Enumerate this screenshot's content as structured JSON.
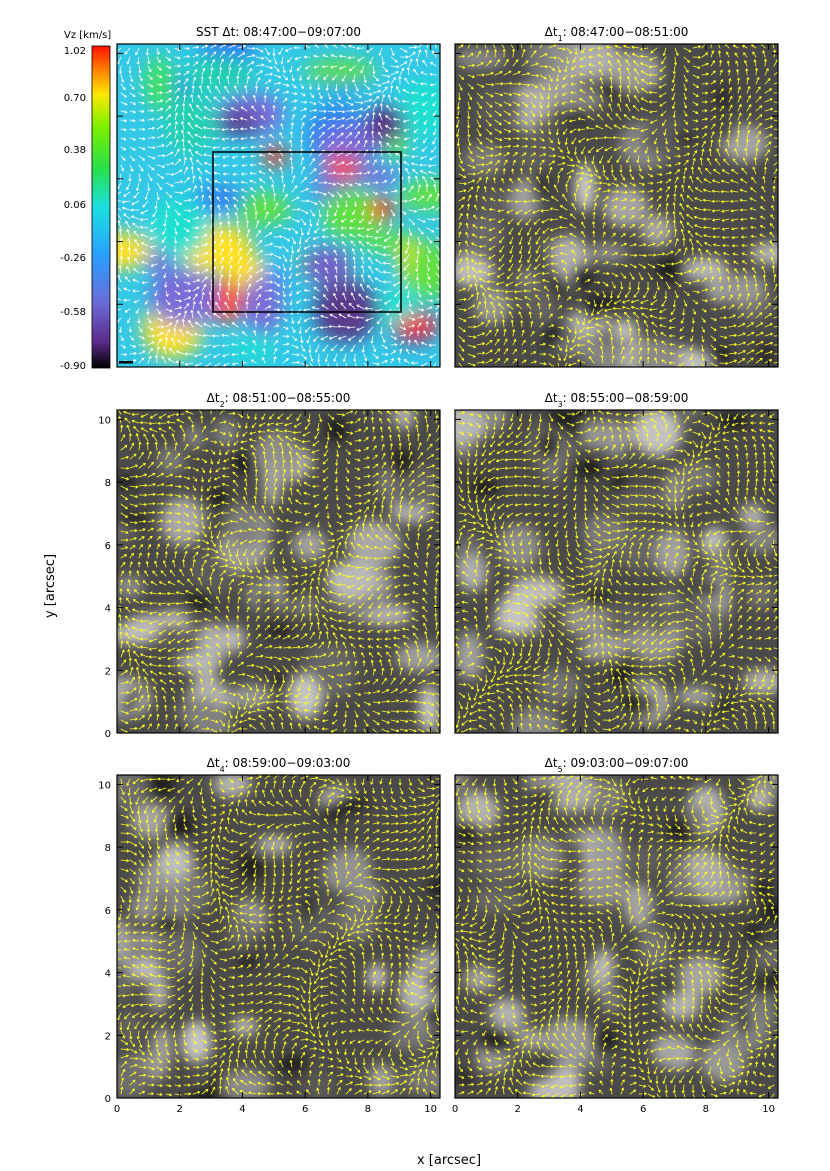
{
  "figure": {
    "xlabel": "x [arcsec]",
    "ylabel": "y [arcsec]",
    "colorbar": {
      "label": "Vz [km/s]",
      "ticks": [
        "1.02",
        "0.70",
        "0.38",
        "0.06",
        "-0.26",
        "-0.58",
        "-0.90"
      ]
    },
    "panels": [
      {
        "id": "p0",
        "title_prefix": "SST   Δt:",
        "title_sub": "",
        "title_time": "08:47:00−09:07:00",
        "style": "velocity",
        "arrow_color": "#ffffff",
        "show_box": true
      },
      {
        "id": "p1",
        "title_prefix": "Δt",
        "title_sub": "1",
        "title_time": ":  08:47:00−08:51:00",
        "style": "intensity",
        "arrow_color": "#ffff22"
      },
      {
        "id": "p2",
        "title_prefix": "Δt",
        "title_sub": "2",
        "title_time": ":  08:51:00−08:55:00",
        "style": "intensity",
        "arrow_color": "#ffff22"
      },
      {
        "id": "p3",
        "title_prefix": "Δt",
        "title_sub": "3",
        "title_time": ":  08:55:00−08:59:00",
        "style": "intensity",
        "arrow_color": "#ffff22"
      },
      {
        "id": "p4",
        "title_prefix": "Δt",
        "title_sub": "4",
        "title_time": ":  08:59:00−09:03:00",
        "style": "intensity",
        "arrow_color": "#ffff22"
      },
      {
        "id": "p5",
        "title_prefix": "Δt",
        "title_sub": "5",
        "title_time": ":  09:03:00−09:07:00",
        "style": "intensity",
        "arrow_color": "#ffff22"
      }
    ],
    "x_ticks": [
      "0",
      "2",
      "4",
      "6",
      "8",
      "10"
    ],
    "y_ticks": [
      "0",
      "2",
      "4",
      "6",
      "8",
      "10"
    ],
    "axis_range": [
      0,
      10.3
    ]
  }
}
